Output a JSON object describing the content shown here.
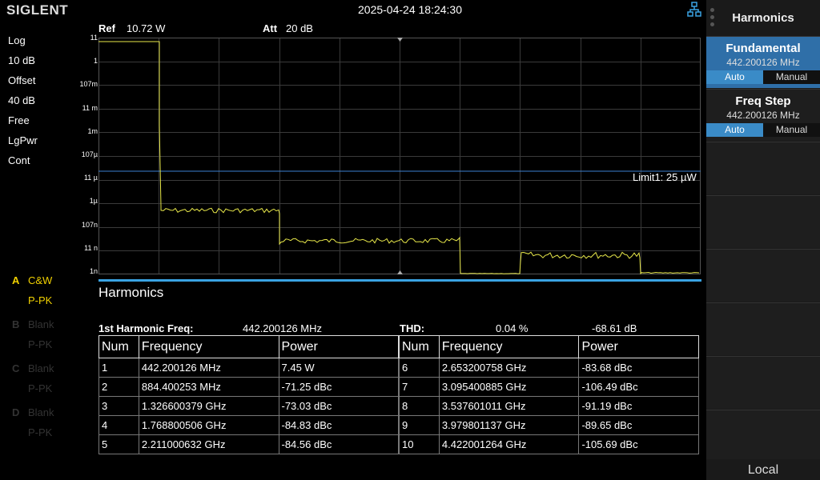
{
  "header": {
    "brand": "SIGLENT",
    "datetime": "2025-04-24 18:24:30",
    "network_icon": "network-icon"
  },
  "left_status": {
    "scale_type": "Log",
    "scale_div": "10 dB",
    "offset_label": "Offset",
    "offset_value": "40 dB",
    "trigger": "Free",
    "trace_type": "LgPwr",
    "sweep": "Cont"
  },
  "traces": [
    {
      "letter": "A",
      "mode": "C&W",
      "detector": "P-PK",
      "active": true
    },
    {
      "letter": "B",
      "mode": "Blank",
      "detector": "P-PK",
      "active": false
    },
    {
      "letter": "C",
      "mode": "Blank",
      "detector": "P-PK",
      "active": false
    },
    {
      "letter": "D",
      "mode": "Blank",
      "detector": "P-PK",
      "active": false
    }
  ],
  "ref_bar": {
    "ref_label": "Ref",
    "ref_value": "10.72 W",
    "att_label": "Att",
    "att_value": "20 dB"
  },
  "y_axis_labels": [
    "11",
    "1",
    "107m",
    "11 m",
    "1m",
    "107µ",
    "11 µ",
    "1µ",
    "107n",
    "11 n",
    "1n"
  ],
  "limit_label": "Limit1: 25 µW",
  "colors": {
    "trace": "#e8e84a",
    "limit_line": "#3a7fd0",
    "accent": "#3aa3e3",
    "grid": "#3a3a3a"
  },
  "harmonics": {
    "title": "Harmonics",
    "first_freq_label": "1st Harmonic Freq:",
    "first_freq_value": "442.200126 MHz",
    "thd_label": "THD:",
    "thd_percent": "0.04 %",
    "thd_db": "-68.61 dB",
    "headers": [
      "Num",
      "Frequency",
      "Power"
    ],
    "rows_left": [
      [
        "1",
        "442.200126 MHz",
        "7.45 W"
      ],
      [
        "2",
        "884.400253 MHz",
        "-71.25 dBc"
      ],
      [
        "3",
        "1.326600379 GHz",
        "-73.03 dBc"
      ],
      [
        "4",
        "1.768800506 GHz",
        "-84.83 dBc"
      ],
      [
        "5",
        "2.211000632 GHz",
        "-84.56 dBc"
      ]
    ],
    "rows_right": [
      [
        "6",
        "2.653200758 GHz",
        "-83.68 dBc"
      ],
      [
        "7",
        "3.095400885 GHz",
        "-106.49 dBc"
      ],
      [
        "8",
        "3.537601011 GHz",
        "-91.19 dBc"
      ],
      [
        "9",
        "3.979801137 GHz",
        "-89.65 dBc"
      ],
      [
        "10",
        "4.422001264 GHz",
        "-105.69 dBc"
      ]
    ]
  },
  "menu": {
    "title": "Harmonics",
    "fundamental": {
      "label": "Fundamental",
      "value": "442.200126 MHz",
      "auto": "Auto",
      "manual": "Manual"
    },
    "freq_step": {
      "label": "Freq Step",
      "value": "442.200126 MHz",
      "auto": "Auto",
      "manual": "Manual"
    },
    "local": "Local"
  }
}
